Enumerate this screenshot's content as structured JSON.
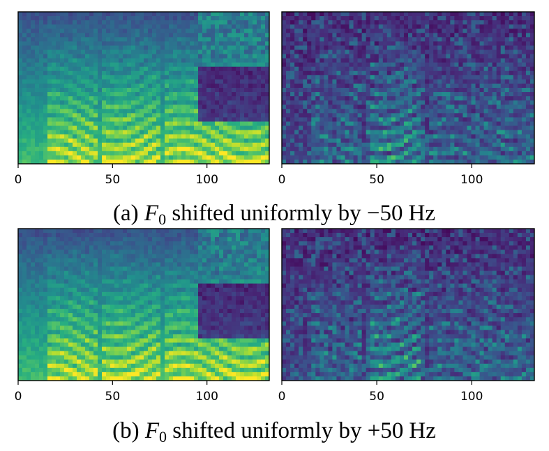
{
  "figure": {
    "captions": [
      {
        "prefix": "(a) ",
        "var": "F",
        "sub": "0",
        "text": " shifted uniformly by ",
        "value": "−50",
        "unit": "Hz"
      },
      {
        "prefix": "(b) ",
        "var": "F",
        "sub": "0",
        "text": " shifted uniformly by ",
        "value": "+50",
        "unit": "Hz"
      }
    ]
  },
  "chart_data": [
    {
      "type": "heatmap",
      "panel": "a-left",
      "description_of_content": "",
      "xlim": [
        0,
        133
      ],
      "xticks": [
        0,
        50,
        100
      ],
      "xtick_labels": [
        "0",
        "50",
        "100"
      ],
      "grid": false,
      "colormap": "viridis",
      "colors": {
        "low": "#440154",
        "mid": "#21918c",
        "high": "#fde725"
      }
    },
    {
      "type": "heatmap",
      "panel": "a-right",
      "xlim": [
        0,
        133
      ],
      "xticks": [
        0,
        50,
        100
      ],
      "xtick_labels": [
        "0",
        "50",
        "100"
      ],
      "grid": false,
      "colormap": "viridis",
      "colors": {
        "low": "#440154",
        "mid": "#21918c",
        "high": "#fde725"
      }
    },
    {
      "type": "heatmap",
      "panel": "b-left",
      "xlim": [
        0,
        133
      ],
      "xticks": [
        0,
        50,
        100
      ],
      "xtick_labels": [
        "0",
        "50",
        "100"
      ],
      "grid": false,
      "colormap": "viridis",
      "colors": {
        "low": "#440154",
        "mid": "#21918c",
        "high": "#fde725"
      }
    },
    {
      "type": "heatmap",
      "panel": "b-right",
      "xlim": [
        0,
        133
      ],
      "xticks": [
        0,
        50,
        100
      ],
      "xtick_labels": [
        "0",
        "50",
        "100"
      ],
      "grid": false,
      "colormap": "viridis",
      "colors": {
        "low": "#440154",
        "mid": "#21918c",
        "high": "#fde725"
      }
    }
  ]
}
